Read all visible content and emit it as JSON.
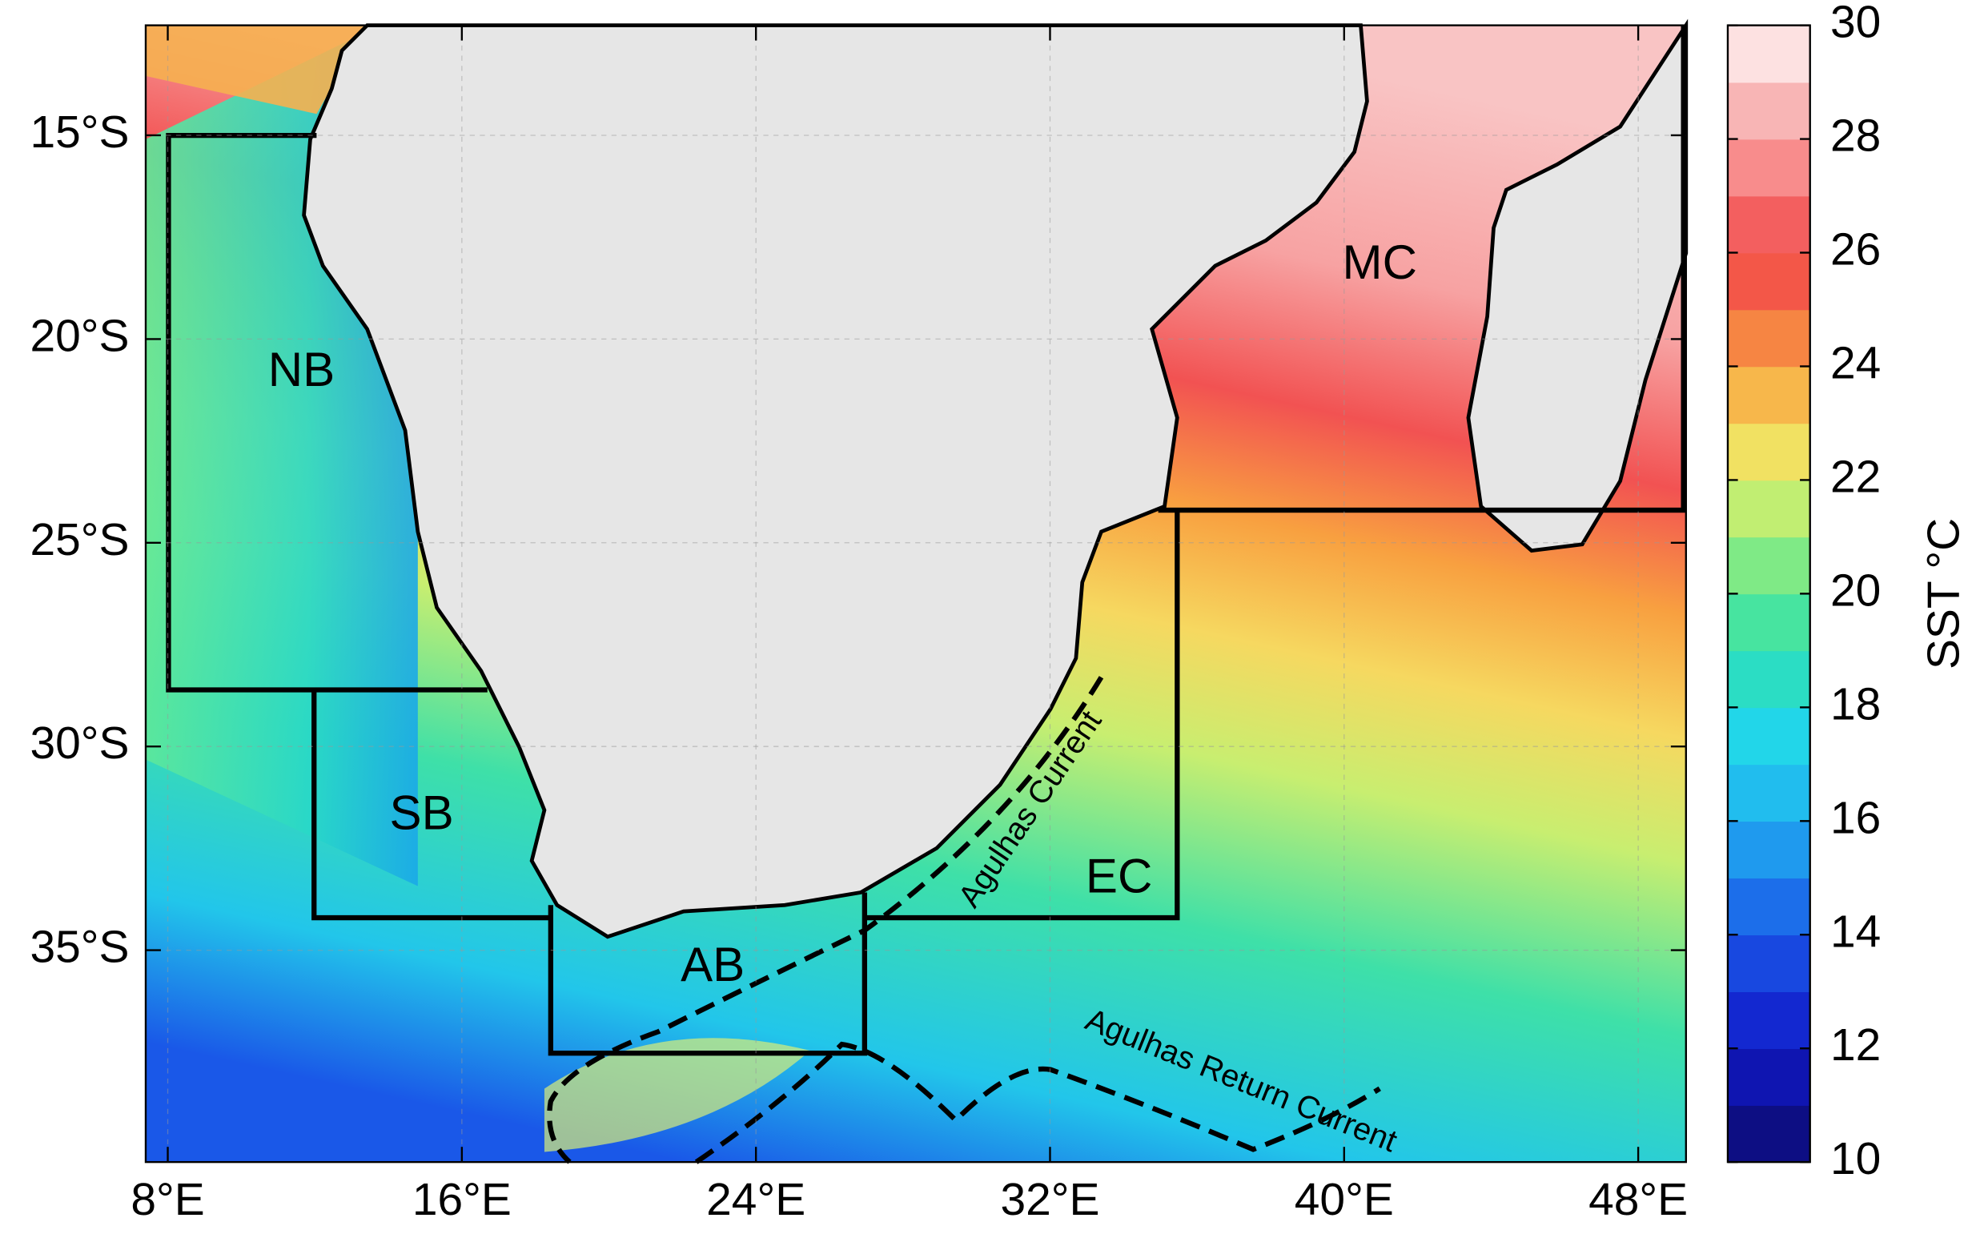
{
  "map": {
    "xlim": [
      7.4,
      49.3
    ],
    "ylim": [
      -40.2,
      -12.3
    ],
    "xticks": [
      {
        "value": 8,
        "label": "8°E"
      },
      {
        "value": 16,
        "label": "16°E"
      },
      {
        "value": 24,
        "label": "24°E"
      },
      {
        "value": 32,
        "label": "32°E"
      },
      {
        "value": 40,
        "label": "40°E"
      },
      {
        "value": 48,
        "label": "48°E"
      }
    ],
    "yticks": [
      {
        "value": -15,
        "label": "15°S"
      },
      {
        "value": -20,
        "label": "20°S"
      },
      {
        "value": -25,
        "label": "25°S"
      },
      {
        "value": -30,
        "label": "30°S"
      },
      {
        "value": -35,
        "label": "35°S"
      }
    ],
    "regions": [
      "NB",
      "SB",
      "AB",
      "EC",
      "MC"
    ],
    "currents": [
      "Agulhas Current",
      "Agulhas Return Current"
    ],
    "colorbar": {
      "label": "SST °C",
      "lim": [
        10,
        30
      ],
      "ticks": [
        10,
        12,
        14,
        16,
        18,
        20,
        22,
        24,
        26,
        28,
        30
      ]
    }
  }
}
